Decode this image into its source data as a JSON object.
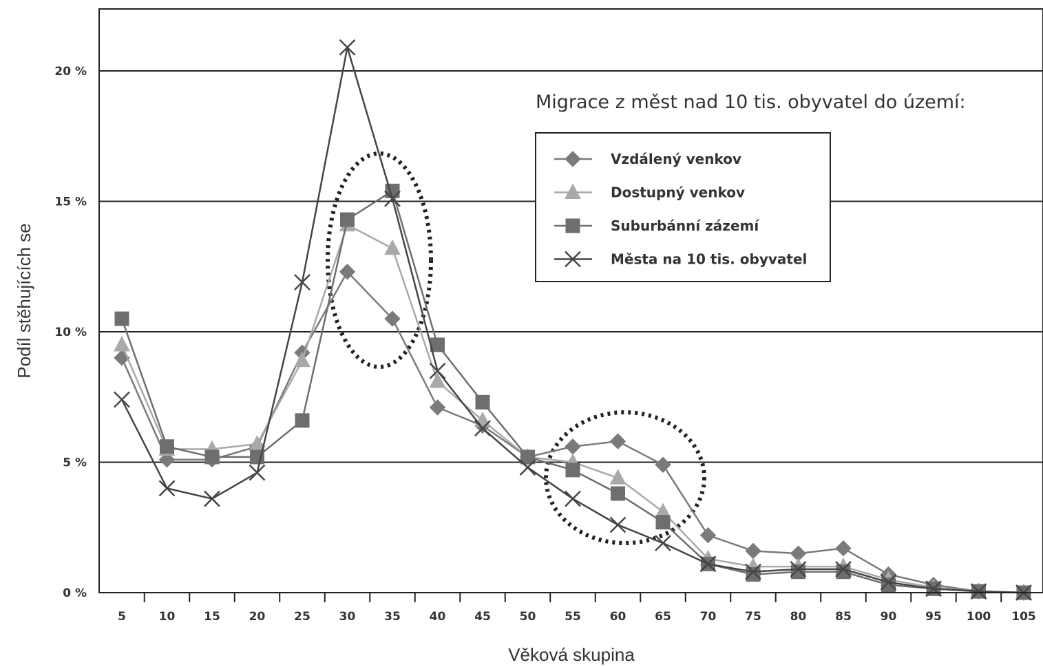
{
  "chart_data": {
    "type": "line",
    "title": "",
    "annotation": "Migrace z měst nad 10 tis. obyvatel do území:",
    "xlabel": "Věková skupina",
    "ylabel": "Podíl stěhujících se",
    "x": [
      5,
      10,
      15,
      20,
      25,
      30,
      35,
      40,
      45,
      50,
      55,
      60,
      65,
      70,
      75,
      80,
      85,
      90,
      95,
      100,
      105
    ],
    "x_tick_labels": [
      "5",
      "10",
      "15",
      "20",
      "25",
      "30",
      "35",
      "40",
      "45",
      "50",
      "55",
      "60",
      "65",
      "70",
      "75",
      "80",
      "85",
      "90",
      "95",
      "100",
      "105"
    ],
    "ylim": [
      0,
      22.5
    ],
    "y_ticks": [
      0,
      5,
      10,
      15,
      20
    ],
    "y_tick_labels": [
      "0 %",
      "5 %",
      "10 %",
      "15 %",
      "20 %"
    ],
    "grid": "horizontal",
    "legend_position": "top-right",
    "series": [
      {
        "name": "Vzdálený venkov",
        "marker": "diamond",
        "color": "#7a7a7a",
        "values": [
          9.0,
          5.1,
          5.1,
          5.6,
          9.2,
          12.3,
          10.5,
          7.1,
          6.4,
          5.2,
          5.6,
          5.8,
          4.9,
          2.2,
          1.6,
          1.5,
          1.7,
          0.7,
          0.3,
          0.05,
          0.0
        ]
      },
      {
        "name": "Dostupný venkov",
        "marker": "triangle",
        "color": "#a9a9a9",
        "values": [
          9.5,
          5.5,
          5.5,
          5.7,
          8.9,
          14.1,
          13.2,
          8.1,
          6.6,
          5.2,
          5.0,
          4.4,
          3.1,
          1.3,
          1.0,
          1.0,
          1.0,
          0.5,
          0.2,
          0.05,
          0.0
        ]
      },
      {
        "name": "Suburbánní zázemí",
        "marker": "square",
        "color": "#6e6e6e",
        "values": [
          10.5,
          5.6,
          5.2,
          5.2,
          6.6,
          14.3,
          15.4,
          9.5,
          7.3,
          5.2,
          4.7,
          3.8,
          2.7,
          1.1,
          0.7,
          0.8,
          0.8,
          0.3,
          0.15,
          0.05,
          0.0
        ]
      },
      {
        "name": "Města na 10 tis. obyvatel",
        "marker": "x",
        "color": "#454545",
        "values": [
          7.4,
          4.0,
          3.6,
          4.6,
          11.9,
          20.9,
          15.1,
          8.5,
          6.3,
          4.8,
          3.6,
          2.6,
          1.9,
          1.1,
          0.8,
          0.9,
          0.9,
          0.4,
          0.15,
          0.05,
          0.0
        ]
      }
    ]
  }
}
